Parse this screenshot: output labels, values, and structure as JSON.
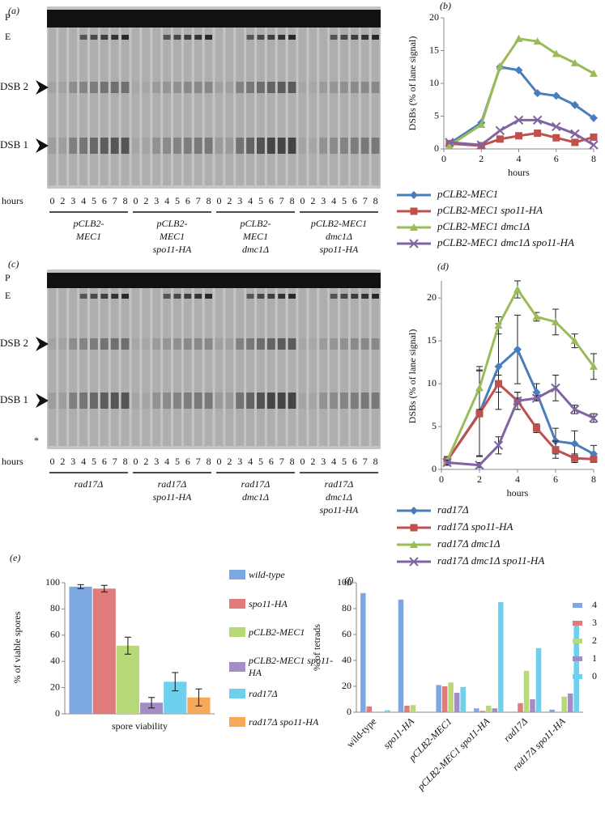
{
  "gels": [
    {
      "panel": "(a)",
      "bands": [
        "P",
        "E",
        "DSB 2",
        "DSB 1"
      ],
      "axis_label": "hours",
      "lanes": [
        0,
        2,
        3,
        4,
        5,
        6,
        7,
        8
      ],
      "strains": [
        [
          "pCLB2-",
          "MEC1"
        ],
        [
          "pCLB2-",
          "MEC1",
          "spo11-HA"
        ],
        [
          "pCLB2-",
          "MEC1",
          "dmc1Δ"
        ],
        [
          "pCLB2-MEC1",
          "dmc1Δ",
          "spo11-HA"
        ]
      ]
    },
    {
      "panel": "(c)",
      "bands": [
        "P",
        "E",
        "DSB 2",
        "DSB 1"
      ],
      "axis_label": "hours",
      "lanes": [
        0,
        2,
        3,
        4,
        5,
        6,
        7,
        8
      ],
      "star": "*",
      "strains": [
        [
          "rad17Δ"
        ],
        [
          "rad17Δ",
          "spo11-HA"
        ],
        [
          "rad17Δ",
          "dmc1Δ"
        ],
        [
          "rad17Δ",
          "dmc1Δ",
          "spo11-HA"
        ]
      ]
    }
  ],
  "chart_data": [
    {
      "type": "line",
      "panel": "(b)",
      "x_label": "hours",
      "y_label": "DSBs (% of lane signal)",
      "x": [
        0.3,
        2,
        3,
        4,
        5,
        6,
        7,
        8
      ],
      "xlim": [
        0,
        8
      ],
      "xticks": [
        0,
        2,
        4,
        6,
        8
      ],
      "ylim": [
        0,
        20
      ],
      "yticks": [
        0,
        5,
        10,
        15,
        20
      ],
      "series": [
        {
          "name": "pCLB2-MEC1",
          "color": "#4a7ebb",
          "marker": "diamond",
          "values": [
            0.8,
            4.0,
            12.5,
            12.0,
            8.5,
            8.1,
            6.7,
            4.7
          ]
        },
        {
          "name": "pCLB2-MEC1 spo11-HA",
          "color": "#c0504d",
          "marker": "square",
          "values": [
            0.8,
            0.5,
            1.5,
            2.0,
            2.4,
            1.7,
            1.0,
            1.8
          ]
        },
        {
          "name": "pCLB2-MEC1 dmc1Δ",
          "color": "#9bbb59",
          "marker": "triangle",
          "values": [
            0.5,
            3.7,
            12.6,
            16.8,
            16.4,
            14.5,
            13.1,
            11.5
          ]
        },
        {
          "name": "pCLB2-MEC1 dmc1Δ spo11-HA",
          "color": "#8064a2",
          "marker": "x",
          "values": [
            1.0,
            0.6,
            2.8,
            4.4,
            4.4,
            3.4,
            2.3,
            0.6
          ]
        }
      ]
    },
    {
      "type": "line",
      "panel": "(d)",
      "x_label": "hours",
      "y_label": "DSBs (% of lane signal)",
      "x": [
        0.3,
        2,
        3,
        4,
        5,
        6,
        7,
        8
      ],
      "xlim": [
        0,
        8
      ],
      "xticks": [
        0,
        2,
        4,
        6,
        8
      ],
      "ylim": [
        0,
        22
      ],
      "yticks": [
        0,
        5,
        10,
        15,
        20
      ],
      "series": [
        {
          "name": "rad17Δ",
          "color": "#4a7ebb",
          "marker": "diamond",
          "values": [
            1.0,
            6.6,
            12.0,
            14.0,
            9.0,
            3.3,
            3.0,
            1.8
          ],
          "errors": [
            0.5,
            5,
            5,
            4,
            1,
            1.5,
            1.5,
            1
          ]
        },
        {
          "name": "rad17Δ spo11-HA",
          "color": "#c0504d",
          "marker": "square",
          "values": [
            1.0,
            6.5,
            10.0,
            8.0,
            4.8,
            2.3,
            1.3,
            1.2
          ],
          "errors": [
            0.3,
            5,
            1,
            1,
            0.5,
            1,
            0.5,
            0.3
          ]
        },
        {
          "name": "rad17Δ dmc1Δ",
          "color": "#9bbb59",
          "marker": "triangle",
          "values": [
            1.0,
            9.5,
            16.8,
            21.0,
            17.8,
            17.2,
            15.0,
            12.0
          ],
          "errors": [
            0.5,
            2.5,
            1,
            1,
            0.5,
            1.5,
            0.8,
            1.5
          ]
        },
        {
          "name": "rad17Δ dmc1Δ spo11-HA",
          "color": "#8064a2",
          "marker": "x",
          "values": [
            0.8,
            0.5,
            2.8,
            8.0,
            8.3,
            9.5,
            7.0,
            6.0
          ],
          "errors": [
            0.3,
            0.3,
            1,
            1,
            0.3,
            1.5,
            0.5,
            0.5
          ]
        }
      ]
    },
    {
      "type": "bar",
      "panel": "(e)",
      "y_label": "% of viable spores",
      "categories": [
        "spore viability"
      ],
      "ylim": [
        0,
        100
      ],
      "yticks": [
        0,
        20,
        40,
        60,
        80,
        100
      ],
      "series": [
        {
          "name": "wild-type",
          "color": "#7da7e0",
          "values": [
            97
          ],
          "errors": [
            1.5
          ]
        },
        {
          "name": "spo11-HA",
          "color": "#e07b7b",
          "values": [
            95.5
          ],
          "errors": [
            2.5
          ]
        },
        {
          "name": "pCLB2-MEC1",
          "color": "#b8d978",
          "values": [
            52
          ],
          "errors": [
            6.5
          ]
        },
        {
          "name": "pCLB2-MEC1 spo11-HA",
          "color": "#a48cc7",
          "values": [
            8.5
          ],
          "errors": [
            4
          ]
        },
        {
          "name": "rad17Δ",
          "color": "#6fd0ee",
          "values": [
            24.5
          ],
          "errors": [
            7
          ]
        },
        {
          "name": "rad17Δ spo11-HA",
          "color": "#f7a95a",
          "values": [
            12.5
          ],
          "errors": [
            6.5
          ]
        }
      ]
    },
    {
      "type": "bar",
      "panel": "(f)",
      "y_label": "% of tetrads",
      "categories": [
        "wild-type",
        "spo11-HA",
        "pCLB2-MEC1",
        "pCLB2-MEC1 spo11-HA",
        "rad17Δ",
        "rad17Δ spo11-HA"
      ],
      "ylim": [
        0,
        100
      ],
      "yticks": [
        0,
        20,
        40,
        60,
        80,
        100
      ],
      "series": [
        {
          "name": "4",
          "color": "#7da7e0",
          "values": [
            92,
            87,
            21,
            3,
            0,
            2
          ]
        },
        {
          "name": "3",
          "color": "#e07b7b",
          "values": [
            4.5,
            5,
            20,
            1,
            7,
            0
          ]
        },
        {
          "name": "2",
          "color": "#b8d978",
          "values": [
            0,
            5.5,
            23,
            5,
            32,
            12
          ]
        },
        {
          "name": "1",
          "color": "#a48cc7",
          "values": [
            0,
            0,
            15,
            3,
            10,
            14.5
          ]
        },
        {
          "name": "0",
          "color": "#6fd0ee",
          "values": [
            1.5,
            0,
            19.5,
            85,
            49.5,
            70
          ]
        }
      ]
    }
  ]
}
